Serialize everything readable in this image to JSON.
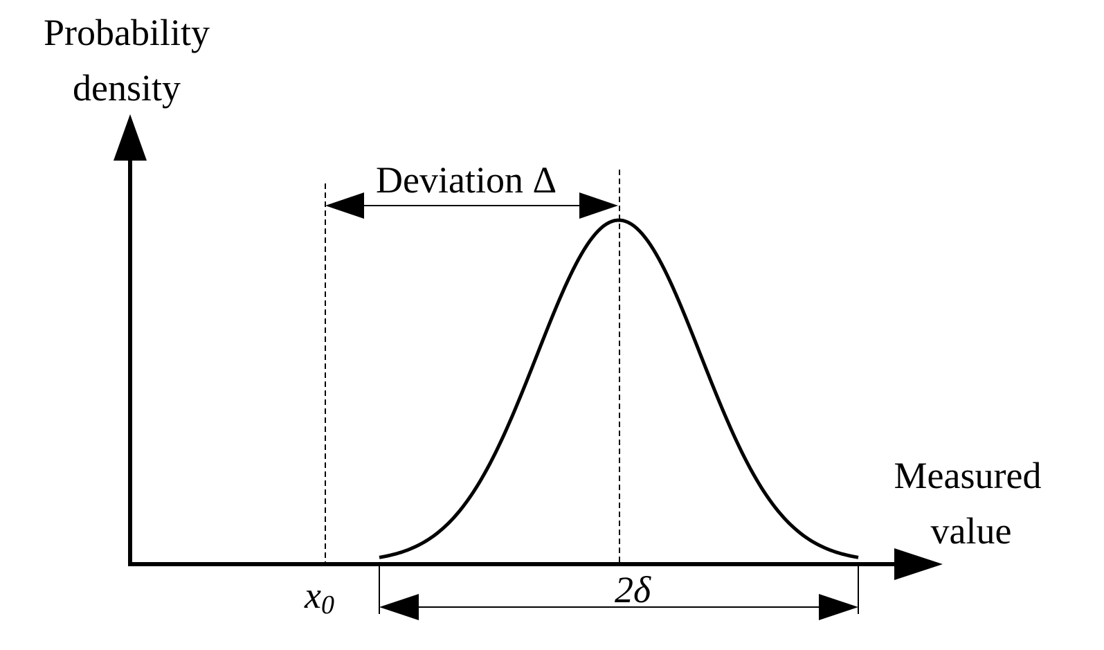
{
  "y_axis_label": [
    "Probability",
    "density"
  ],
  "x_axis_label": [
    "Measured",
    "value"
  ],
  "annotations": {
    "deviation": "Deviation Δ",
    "origin": {
      "symbol": "x",
      "subscript": "0"
    },
    "spread": "2δ"
  }
}
